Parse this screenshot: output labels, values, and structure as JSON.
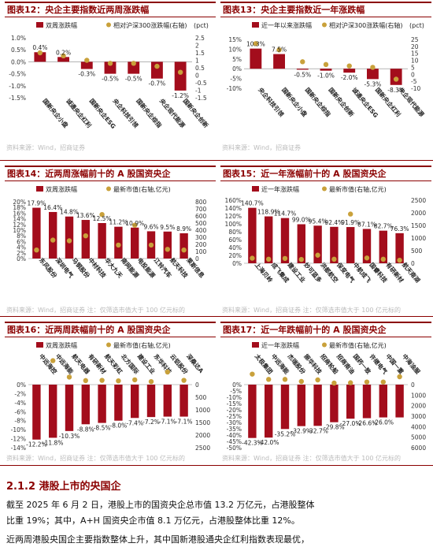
{
  "panels": [
    {
      "id": "p12",
      "title": "图表12：央企主要指数近两周涨跌幅",
      "source": "资料来源：Wind，招商证券",
      "chart_data": {
        "type": "bar",
        "legend": [
          "双周涨跌幅",
          "相对沪深300涨跌幅(右轴)"
        ],
        "right_unit": "(pct)",
        "categories": [
          "国新央企小盘",
          "诚通央企红利",
          "国新央企ESG",
          "央企科技引领",
          "国新央企综指",
          "央企现代能源",
          "国新央企创新"
        ],
        "values": [
          0.4,
          0.2,
          -0.3,
          -0.5,
          -0.5,
          -0.7,
          -1.2
        ],
        "value_labels": [
          "0.4%",
          "0.2%",
          "-0.3%",
          "-0.5%",
          "-0.5%",
          "-0.7%",
          "-1.2%"
        ],
        "dots": [
          1.5,
          1.3,
          1.0,
          0.8,
          0.8,
          0.6,
          0.2
        ],
        "ylim": [
          -1.5,
          1.0
        ],
        "yticks": [
          "1.0%",
          "0.5%",
          "0.0%",
          "-0.5%",
          "-1.0%",
          "-1.5%"
        ],
        "y2lim": [
          -1.5,
          2.5
        ],
        "y2ticks": [
          "2.5",
          "2",
          "1.5",
          "1",
          "0.5",
          "0",
          "-0.5",
          "-1",
          "-1.5"
        ]
      }
    },
    {
      "id": "p13",
      "title": "图表13：央企主要指数近一年涨跌幅",
      "source": "资料来源：Wind，招商证券",
      "chart_data": {
        "type": "bar",
        "legend": [
          "近一年以来涨跌幅",
          "相对沪深300涨跌幅(右轴)"
        ],
        "right_unit": "(pct)",
        "categories": [
          "央企科技引领",
          "国新央企小盘",
          "国新央企综指",
          "国新央企创新",
          "诚通央企ESG",
          "国新央企红利",
          "央企现代能源"
        ],
        "values": [
          10.3,
          7.5,
          -0.5,
          -1.0,
          -2.0,
          -5.3,
          -8.3
        ],
        "value_labels": [
          "10.3%",
          "7.5%",
          "-0.5%",
          "-1.0%",
          "-2.0%",
          "-5.3%",
          "-8.3%"
        ],
        "dots": [
          22,
          17.5,
          9,
          7,
          6,
          5,
          -3.5
        ],
        "ylim": [
          -10,
          15
        ],
        "yticks": [
          "15%",
          "10%",
          "5%",
          "0%",
          "-5%",
          "-10%"
        ],
        "y2lim": [
          -10,
          25
        ],
        "y2ticks": [
          "25",
          "20",
          "15",
          "10",
          "5",
          "0",
          "-5",
          "-10"
        ]
      }
    },
    {
      "id": "p14",
      "title": "图表14：近两周涨幅前十的 A 股国资央企",
      "source": "资料来源：Wind，招商证券    注：仅筛选市值大于 100 亿元标的",
      "chart_data": {
        "type": "bar",
        "legend": [
          "双周涨跌幅",
          "最新市值(右轴,亿元)"
        ],
        "categories": [
          "东风股份",
          "深圳电气",
          "马钢股份",
          "中材科技",
          "华大九天",
          "南网能源",
          "电投能源",
          "江铃汽车",
          "航天科技",
          "莱斯信息"
        ],
        "values": [
          17.9,
          16.4,
          14.8,
          13.6,
          12.5,
          11.2,
          10.9,
          9.6,
          9.5,
          8.9
        ],
        "value_labels": [
          "17.9%",
          "16.4%",
          "14.8%",
          "13.6%",
          "12.5%",
          "11.2%",
          "10.9%",
          "9.6%",
          "9.5%",
          "8.9%"
        ],
        "dots": [
          120,
          260,
          250,
          320,
          620,
          190,
          470,
          190,
          130,
          120
        ],
        "ylim": [
          0,
          20
        ],
        "yticks": [
          "20%",
          "18%",
          "16%",
          "14%",
          "12%",
          "10%",
          "8%",
          "6%",
          "4%",
          "2%",
          "0%"
        ],
        "y2lim": [
          0,
          800
        ],
        "y2ticks": [
          "800",
          "700",
          "600",
          "500",
          "400",
          "300",
          "200",
          "100",
          "0"
        ]
      }
    },
    {
      "id": "p15",
      "title": "图表15：近一年涨幅前十的 A 股国资央企",
      "source": "资料来源：Wind，招商证券    注：仅筛选市值大于 100 亿元标的",
      "chart_data": {
        "type": "bar",
        "legend": [
          "近一年涨跌幅",
          "最新市值(右轴,亿元)"
        ],
        "categories": [
          "上海贝岭",
          "成飞集成",
          "建设工业",
          "妙可蓝多",
          "洪都航空",
          "保变电气",
          "中航成飞",
          "国睿科技",
          "有研新材",
          "航天南湖"
        ],
        "values": [
          140.7,
          118.9,
          114.7,
          99.0,
          95.4,
          92.4,
          91.9,
          87.1,
          82.7,
          76.3
        ],
        "value_labels": [
          "140.7%",
          "118.9%",
          "114.7%",
          "99.0%",
          "95.4%",
          "92.4%",
          "91.9%",
          "87.1%",
          "82.7%",
          "76.3%"
        ],
        "dots": [
          200,
          160,
          190,
          150,
          320,
          160,
          1950,
          210,
          160,
          120
        ],
        "ylim": [
          0,
          160
        ],
        "yticks": [
          "160%",
          "140%",
          "120%",
          "100%",
          "80%",
          "60%",
          "40%",
          "20%",
          "0%"
        ],
        "y2lim": [
          0,
          2500
        ],
        "y2ticks": [
          "2500",
          "2000",
          "1500",
          "1000",
          "500",
          "0"
        ]
      }
    },
    {
      "id": "p16",
      "title": "图表16：近两周跌幅前十的 A 股国资央企",
      "source": "资料来源：Wind，招商证券    注：仅筛选市值大于 100 亿元标的",
      "chart_data": {
        "type": "bar",
        "legend": [
          "双周涨跌幅",
          "最新市值(右轴,亿元)"
        ],
        "categories": [
          "中远海控",
          "中远海能",
          "航天电器",
          "有研新材",
          "航天彩虹",
          "北方国际",
          "建设工业",
          "东华科技",
          "云铝股份",
          "深桑达A"
        ],
        "values": [
          -12.2,
          -11.8,
          -10.3,
          -8.8,
          -8.5,
          -8.0,
          -7.4,
          -7.2,
          -7.1,
          -7.1
        ],
        "value_labels": [
          "-12.2%",
          "-11.8%",
          "-10.3%",
          "-8.8%",
          "-8.5%",
          "-8.0%",
          "-7.4%",
          "-7.2%",
          "-7.1%",
          "-7.1%"
        ],
        "dots": [
          2100,
          950,
          300,
          160,
          170,
          150,
          190,
          120,
          500,
          170
        ],
        "ylim": [
          -14,
          0
        ],
        "yticks": [
          "0%",
          "-2%",
          "-4%",
          "-6%",
          "-8%",
          "-10%",
          "-12%",
          "-14%"
        ],
        "y2lim": [
          -2500,
          0
        ],
        "y2ticks": [
          "0",
          "500",
          "1000",
          "1500",
          "2000",
          "2500"
        ]
      }
    },
    {
      "id": "p17",
      "title": "图表17：近一年跌幅前十的 A 股国资央企",
      "source": "资料来源：Wind，招商证券    注：仅筛选市值大于 100 亿元标的",
      "chart_data": {
        "type": "bar",
        "legend": [
          "近一年涨跌幅",
          "最新市值(右轴,亿元)"
        ],
        "categories": [
          "太极集团",
          "中远海能",
          "杰瑞股份",
          "振华科技",
          "招商轮船",
          "招商南油",
          "国药一致",
          "许继电气",
          "中国一重",
          "中海油服"
        ],
        "values": [
          -42.3,
          -42.0,
          -35.2,
          -32.9,
          -32.7,
          -29.8,
          -27.0,
          -26.6,
          -26.0,
          -26.0
        ],
        "value_labels": [
          "-42.3%",
          "-42.0%",
          "-35.2%",
          "-32.9%",
          "-32.7%",
          "-29.8%",
          "-27.0%",
          "-26.6%",
          "-26.0%",
          ""
        ],
        "dots": [
          1000,
          500,
          500,
          300,
          450,
          150,
          180,
          250,
          250,
          750
        ],
        "ylim": [
          -50,
          0
        ],
        "yticks": [
          "0%",
          "-5%",
          "-10%",
          "-15%",
          "-20%",
          "-25%",
          "-30%",
          "-35%",
          "-40%",
          "-45%",
          "-50%"
        ],
        "y2lim": [
          -6000,
          0
        ],
        "y2ticks": [
          "0",
          "1000",
          "2000",
          "3000",
          "4000",
          "5000",
          "6000"
        ]
      }
    }
  ],
  "section": {
    "heading": "2.1.2 港股上市的央国企",
    "paragraphs": [
      "截至 2025 年 6 月 2 日，港股上市的国资央企总市值 13.2 万亿元，占港股整体",
      "比重 19%；其中，A+H 国资央企市值 8.1 万亿元，占港股整体比重 12%。",
      "近两周港股央国企主要指数整体上升，其中国新港股通央企红利指数表现最优，"
    ]
  },
  "colors": {
    "bar": "#a30d1c",
    "dot": "#c9a13b",
    "title": "#8b0000"
  }
}
